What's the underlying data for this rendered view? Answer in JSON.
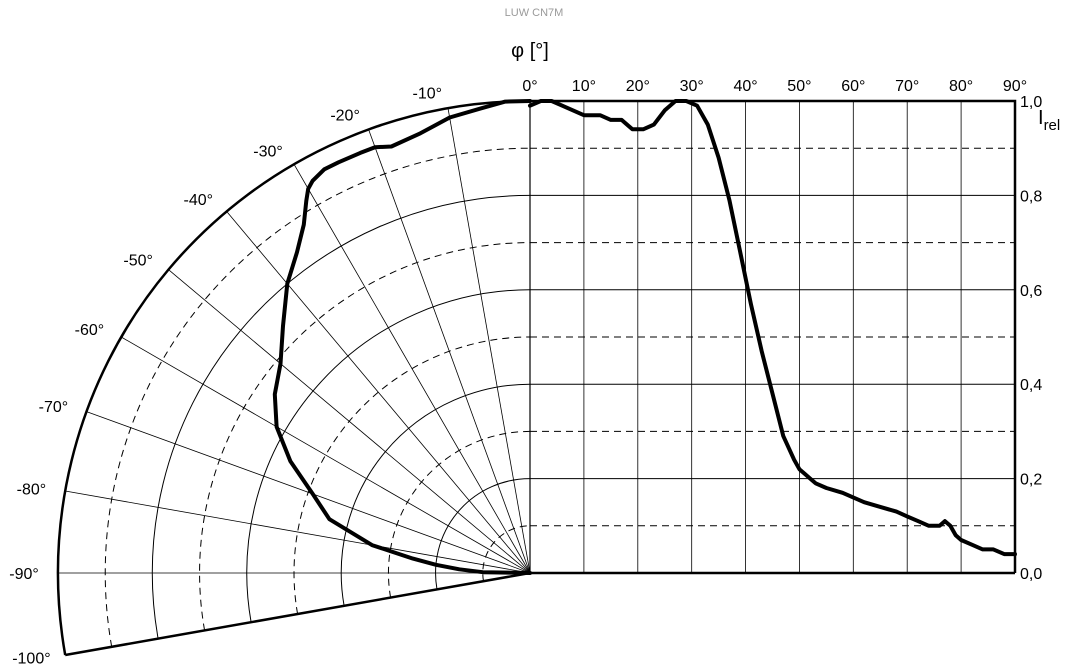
{
  "chart_data": {
    "type": "line",
    "title": "LUW CN7M",
    "polar_axis_label": "φ [°]",
    "ylabel": "I",
    "ylabel_sub": "rel",
    "polar_tick_labels": [
      "-10°",
      "-20°",
      "-30°",
      "-40°",
      "-50°",
      "-60°",
      "-70°",
      "-80°",
      "-90°",
      "-100°"
    ],
    "x_tick_labels": [
      "0°",
      "10°",
      "20°",
      "30°",
      "40°",
      "50°",
      "60°",
      "70°",
      "80°",
      "90°"
    ],
    "y_tick_labels": [
      "0,0",
      "0,2",
      "0,4",
      "0,6",
      "0,8",
      "1,0"
    ],
    "polar_range_deg": [
      -100,
      0
    ],
    "x_range_deg": [
      0,
      90
    ],
    "ylim": [
      0,
      1
    ],
    "polar_series": {
      "angle_deg": [
        0,
        -3,
        -6,
        -10,
        -14,
        -18,
        -20,
        -22,
        -25,
        -27,
        -29,
        -30,
        -31,
        -33,
        -36,
        -40,
        -45,
        -50,
        -55,
        -60,
        -65,
        -70,
        -75,
        -80,
        -83,
        -85,
        -87,
        -89,
        -90
      ],
      "value": [
        1.0,
        1.0,
        0.99,
        0.98,
        0.96,
        0.95,
        0.96,
        0.96,
        0.96,
        0.96,
        0.95,
        0.94,
        0.92,
        0.88,
        0.84,
        0.8,
        0.74,
        0.69,
        0.66,
        0.62,
        0.56,
        0.49,
        0.44,
        0.34,
        0.25,
        0.2,
        0.15,
        0.1,
        0.0
      ]
    },
    "series": [
      {
        "x": [
          0,
          2,
          4,
          6,
          8,
          10,
          13,
          15,
          17,
          19,
          21,
          23,
          25,
          27,
          29,
          31,
          33,
          35,
          37,
          39,
          41,
          43,
          45,
          47,
          49,
          50,
          51,
          52,
          53,
          55,
          58,
          62,
          65,
          68,
          70,
          72,
          74,
          75,
          76,
          77,
          78,
          79,
          80,
          82,
          84,
          86,
          88,
          90
        ],
        "values": [
          0.99,
          1.0,
          1.0,
          0.99,
          0.98,
          0.97,
          0.97,
          0.96,
          0.96,
          0.94,
          0.94,
          0.95,
          0.98,
          1.0,
          1.0,
          0.99,
          0.95,
          0.88,
          0.79,
          0.68,
          0.57,
          0.47,
          0.38,
          0.29,
          0.24,
          0.22,
          0.21,
          0.2,
          0.19,
          0.18,
          0.17,
          0.15,
          0.14,
          0.13,
          0.12,
          0.11,
          0.1,
          0.1,
          0.1,
          0.11,
          0.1,
          0.08,
          0.07,
          0.06,
          0.05,
          0.05,
          0.04,
          0.04
        ]
      }
    ],
    "grid": true,
    "line_color": "#000000"
  }
}
